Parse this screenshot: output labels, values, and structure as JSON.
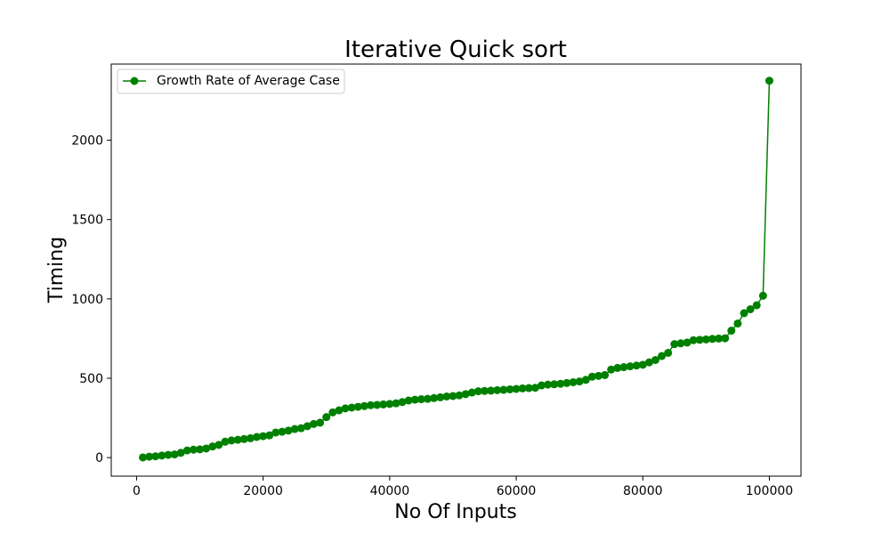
{
  "chart_data": {
    "type": "line",
    "title": "Iterative Quick sort",
    "xlabel": "No Of Inputs",
    "ylabel": "Timing",
    "xlim": [
      -4000,
      105000
    ],
    "ylim": [
      -117,
      2480
    ],
    "xticks": [
      0,
      20000,
      40000,
      60000,
      80000,
      100000
    ],
    "xtick_labels": [
      "0",
      "20000",
      "40000",
      "60000",
      "80000",
      "100000"
    ],
    "yticks": [
      0,
      500,
      1000,
      1500,
      2000
    ],
    "ytick_labels": [
      "0",
      "500",
      "1000",
      "1500",
      "2000"
    ],
    "grid": false,
    "legend": {
      "position": "top-left"
    },
    "series": [
      {
        "name": "Growth Rate of Average Case",
        "color": "#008000",
        "marker": "circle",
        "x": [
          1000,
          2000,
          3000,
          4000,
          5000,
          6000,
          7000,
          8000,
          9000,
          10000,
          11000,
          12000,
          13000,
          14000,
          15000,
          16000,
          17000,
          18000,
          19000,
          20000,
          21000,
          22000,
          23000,
          24000,
          25000,
          26000,
          27000,
          28000,
          29000,
          30000,
          31000,
          32000,
          33000,
          34000,
          35000,
          36000,
          37000,
          38000,
          39000,
          40000,
          41000,
          42000,
          43000,
          44000,
          45000,
          46000,
          47000,
          48000,
          49000,
          50000,
          51000,
          52000,
          53000,
          54000,
          55000,
          56000,
          57000,
          58000,
          59000,
          60000,
          61000,
          62000,
          63000,
          64000,
          65000,
          66000,
          67000,
          68000,
          69000,
          70000,
          71000,
          72000,
          73000,
          74000,
          75000,
          76000,
          77000,
          78000,
          79000,
          80000,
          81000,
          82000,
          83000,
          84000,
          85000,
          86000,
          87000,
          88000,
          89000,
          90000,
          91000,
          92000,
          93000,
          94000,
          95000,
          96000,
          97000,
          98000,
          99000,
          100000
        ],
        "y": [
          1,
          6,
          8,
          13,
          17,
          20,
          30,
          45,
          50,
          52,
          57,
          70,
          80,
          100,
          108,
          112,
          117,
          122,
          130,
          135,
          140,
          158,
          163,
          170,
          180,
          185,
          198,
          212,
          220,
          255,
          285,
          298,
          310,
          315,
          320,
          325,
          330,
          332,
          335,
          338,
          342,
          350,
          360,
          365,
          368,
          370,
          375,
          380,
          385,
          388,
          392,
          400,
          410,
          418,
          420,
          422,
          425,
          427,
          430,
          433,
          436,
          438,
          440,
          455,
          460,
          462,
          465,
          470,
          475,
          480,
          490,
          510,
          515,
          520,
          555,
          565,
          570,
          575,
          580,
          585,
          600,
          615,
          640,
          660,
          715,
          720,
          725,
          740,
          742,
          745,
          748,
          750,
          752,
          800,
          845,
          910,
          935,
          960,
          1020,
          2375
        ]
      }
    ]
  }
}
